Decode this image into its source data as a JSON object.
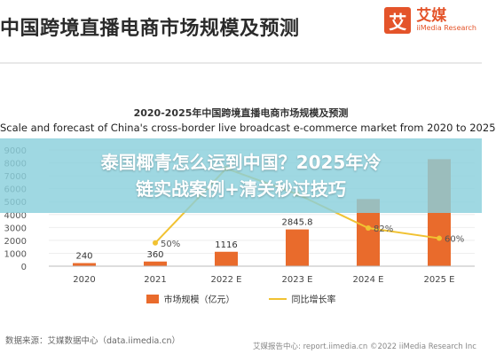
{
  "header": {
    "title": "中国跨境直播电商市场规模及预测",
    "logo_mark": "艾",
    "logo_name": "艾媒",
    "logo_sub": "iiMedia Research"
  },
  "overlay": {
    "line1": "泰国椰青怎么运到中国？2025年冷",
    "line2": "链实战案例+清关秒过技巧"
  },
  "chart_data": {
    "type": "bar",
    "title": "2020-2025年中国跨境直播电商市场规模及预测",
    "subtitle": "Scale and forecast of China's cross-border live broadcast e-commerce market from 2020 to 2025",
    "categories": [
      "2020",
      "2021",
      "2022 E",
      "2023 E",
      "2024 E",
      "2025 E"
    ],
    "series": [
      {
        "name": "市场规模（亿元）",
        "type": "bar",
        "color": "#e96b2c",
        "values": [
          240,
          360,
          1116,
          2845.8,
          5200,
          8287
        ],
        "labels": [
          "240",
          "360",
          "1116",
          "2845.8",
          "",
          ""
        ]
      },
      {
        "name": "同比增长率",
        "type": "line",
        "color": "#f1c232",
        "values": [
          null,
          50,
          210,
          155,
          82,
          60
        ],
        "labels": [
          "",
          "50%",
          "",
          "",
          "82%",
          "60%"
        ]
      }
    ],
    "yticks": [
      "9000",
      "8000",
      "7000",
      "6000",
      "5000",
      "4000",
      "3000",
      "2000",
      "1000",
      "0"
    ],
    "ylim": [
      0,
      9000
    ]
  },
  "footer": {
    "source": "数据来源：艾媒数据中心（data.iimedia.cn）",
    "right": "艾媒报告中心: report.iimedia.cn    ©2022 iiMedia Research Inc"
  }
}
